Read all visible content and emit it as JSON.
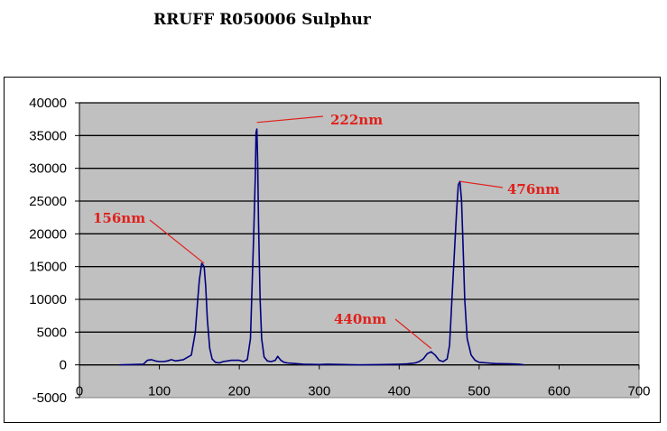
{
  "chart_data": {
    "type": "line",
    "title": "RRUFF R050006 Sulphur",
    "xlim": [
      0,
      700
    ],
    "ylim": [
      -5000,
      40000
    ],
    "xticks": [
      0,
      100,
      200,
      300,
      400,
      500,
      600,
      700
    ],
    "yticks": [
      -5000,
      0,
      5000,
      10000,
      15000,
      20000,
      25000,
      30000,
      35000,
      40000
    ],
    "grid": "horizontal",
    "plot_background": "#c0c0c0",
    "line_color": "#000080",
    "annotation_color": "#e0201b",
    "series": [
      {
        "x": [
          50,
          80,
          85,
          90,
          95,
          100,
          105,
          110,
          115,
          120,
          130,
          140,
          145,
          148,
          150,
          153,
          156,
          158,
          160,
          163,
          166,
          170,
          175,
          180,
          190,
          200,
          205,
          210,
          214,
          216,
          218,
          220,
          221,
          222,
          223,
          224,
          226,
          228,
          231,
          235,
          240,
          245,
          248,
          252,
          256,
          260,
          270,
          280,
          300,
          310,
          350,
          380,
          400,
          410,
          420,
          425,
          430,
          435,
          440,
          445,
          450,
          455,
          460,
          463,
          466,
          469,
          472,
          474,
          476,
          478,
          480,
          482,
          485,
          490,
          495,
          500,
          510,
          520,
          540,
          550,
          556
        ],
        "y": [
          0,
          100,
          700,
          800,
          600,
          500,
          500,
          600,
          800,
          600,
          800,
          1500,
          5000,
          10000,
          13000,
          15500,
          15000,
          12000,
          7000,
          2500,
          900,
          400,
          300,
          500,
          700,
          700,
          500,
          800,
          4000,
          12000,
          20000,
          29000,
          35500,
          36000,
          31000,
          22000,
          10000,
          4000,
          1200,
          600,
          500,
          700,
          1300,
          700,
          400,
          300,
          200,
          100,
          50,
          100,
          0,
          50,
          100,
          150,
          300,
          500,
          900,
          1700,
          2000,
          1500,
          700,
          500,
          900,
          3000,
          10000,
          17000,
          24000,
          27500,
          28000,
          25000,
          18000,
          10000,
          4000,
          1500,
          700,
          400,
          300,
          200,
          150,
          100,
          0
        ]
      }
    ],
    "annotations": [
      {
        "text": "156nm",
        "x": 156,
        "y": 15500
      },
      {
        "text": "222nm",
        "x": 222,
        "y": 37000
      },
      {
        "text": "440nm",
        "x": 440,
        "y": 2500
      },
      {
        "text": "476nm",
        "x": 476,
        "y": 28000
      }
    ]
  }
}
